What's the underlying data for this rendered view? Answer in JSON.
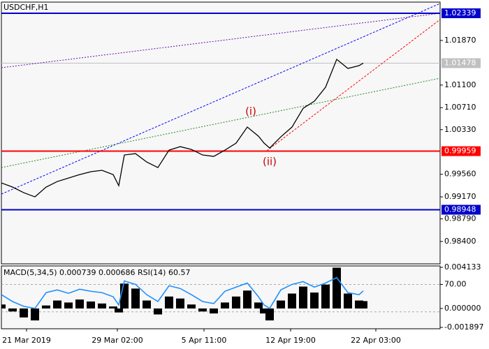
{
  "chart_data": {
    "type": "line",
    "title": "USDCHF,H1",
    "x": [
      0,
      4,
      8,
      12,
      16,
      20,
      24,
      28,
      32,
      36,
      40,
      42,
      44,
      48,
      52,
      56,
      60,
      64,
      68,
      72,
      76,
      80,
      84,
      88,
      92,
      94,
      96,
      100,
      104,
      108,
      112,
      116,
      120,
      124,
      128,
      129.5
    ],
    "series": [
      {
        "name": "USDCHF",
        "color": "#000000",
        "values": [
          0.99411,
          0.99339,
          0.99242,
          0.9917,
          0.99339,
          0.99435,
          0.99495,
          0.99555,
          0.99604,
          0.99628,
          0.99555,
          0.99363,
          0.99893,
          0.99917,
          0.99772,
          0.99676,
          0.99977,
          1.00037,
          0.99989,
          0.99893,
          0.99869,
          0.99977,
          1.00098,
          1.00375,
          1.00218,
          1.00098,
          1.00013,
          1.00206,
          1.00375,
          1.007,
          1.00821,
          1.01062,
          1.01544,
          1.01387,
          1.01435,
          1.01478
        ]
      }
    ],
    "xlim": [
      0,
      157
    ],
    "xticks": [
      {
        "value": 9,
        "label": "21 Mar 2019"
      },
      {
        "value": 41.5,
        "label": "29 Mar 02:00"
      },
      {
        "value": 72.5,
        "label": "5 Apr 11:00"
      },
      {
        "value": 103.5,
        "label": "12 Apr 19:00"
      },
      {
        "value": 134,
        "label": "22 Apr 03:00"
      }
    ],
    "ylim": [
      0.98014,
      1.02532
    ],
    "yticks": [
      {
        "value": 1.0187,
        "label": "1.01870"
      },
      {
        "value": 1.011,
        "label": "1.01100"
      },
      {
        "value": 1.0071,
        "label": "1.00710"
      },
      {
        "value": 1.0033,
        "label": "1.00330"
      },
      {
        "value": 0.9956,
        "label": "0.99560"
      },
      {
        "value": 0.9917,
        "label": "0.99170"
      },
      {
        "value": 0.9879,
        "label": "0.98790"
      },
      {
        "value": 0.984,
        "label": "0.98400"
      }
    ],
    "levels": [
      {
        "value": 1.02339,
        "label": "1.02339",
        "color": "#0000cc"
      },
      {
        "value": 0.99959,
        "label": "0.99959",
        "color": "#ff0000"
      },
      {
        "value": 0.98948,
        "label": "0.98948",
        "color": "#0000cc"
      }
    ],
    "current_price": {
      "value": 1.01478,
      "label": "1.01478",
      "color": "#c0c0c0"
    },
    "trend_lines": [
      {
        "color": "#0000ff",
        "dash": "3,2",
        "x": [
          0,
          157
        ],
        "values": [
          0.99218,
          1.02508
        ]
      },
      {
        "color": "#6a0dad",
        "dash": "2,2",
        "x": [
          0,
          157
        ],
        "values": [
          1.01399,
          1.02339
        ]
      },
      {
        "color": "#228b22",
        "dash": "2,2",
        "x": [
          0,
          157
        ],
        "values": [
          0.99676,
          1.01218
        ]
      },
      {
        "color": "#ff0000",
        "dash": "3,2",
        "x": [
          95,
          157
        ],
        "values": [
          0.99966,
          1.02231
        ]
      }
    ],
    "annotations": [
      {
        "text": "(i)",
        "x": 89.25,
        "y": 1.0064,
        "color": "#cc0000"
      },
      {
        "text": "(ii)",
        "x": 96,
        "y": 0.99772,
        "color": "#cc0000"
      }
    ],
    "indicator": {
      "label": "MACD(5,34,5) 0.000739 0.000686 RSI(14) 60.57",
      "macd": {
        "name": "MACD",
        "color": "#000000",
        "values": [
          0.0004,
          -0.0003,
          -0.0009,
          -0.0012,
          0.0003,
          0.0008,
          0.0006,
          0.0009,
          0.0007,
          0.0005,
          0.0002,
          -0.0004,
          0.0025,
          0.002,
          0.0008,
          -0.0006,
          0.0012,
          0.001,
          0.0004,
          -0.0003,
          -0.0005,
          0.0006,
          0.0012,
          0.0018,
          0.0006,
          -0.0005,
          -0.0012,
          0.0008,
          0.0015,
          0.0022,
          0.0016,
          0.0024,
          0.0041,
          0.0015,
          0.0008,
          0.000739
        ]
      },
      "rsi": {
        "name": "RSI",
        "color": "#1e90ff",
        "axis": "y2",
        "values": [
          55,
          45,
          38,
          35,
          58,
          62,
          57,
          63,
          60,
          58,
          52,
          40,
          75,
          70,
          55,
          45,
          68,
          64,
          55,
          45,
          42,
          60,
          66,
          72,
          52,
          40,
          35,
          62,
          70,
          74,
          66,
          72,
          80,
          58,
          55,
          60.57
        ]
      },
      "ylim": [
        -0.001897,
        0.004133
      ],
      "yticks": [
        0.004133,
        {
          "value": 0,
          "label": "0.000000"
        },
        -0.001897
      ],
      "y2lim": [
        7.3,
        94.9
      ],
      "y2ticks": [
        {
          "value": 70,
          "label": "70.00"
        }
      ],
      "rsi_levels": [
        70,
        30
      ]
    }
  }
}
